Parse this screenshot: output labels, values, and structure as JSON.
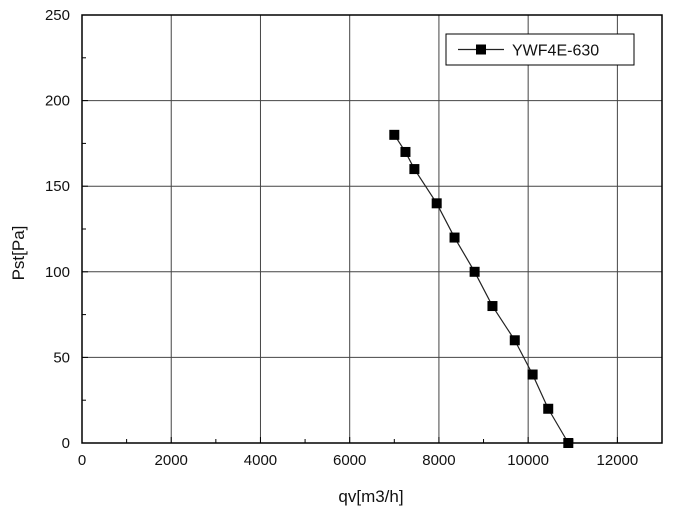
{
  "chart_data": {
    "type": "line",
    "title": "",
    "xlabel": "qv[m3/h]",
    "ylabel": "Pst[Pa]",
    "xlim": [
      0,
      13000
    ],
    "ylim": [
      0,
      250
    ],
    "xticks": [
      0,
      2000,
      4000,
      6000,
      8000,
      10000,
      12000
    ],
    "yticks": [
      0,
      50,
      100,
      150,
      200,
      250
    ],
    "x_tick_labels": [
      "0",
      "2000",
      "4000",
      "6000",
      "8000",
      "10000",
      "12000"
    ],
    "y_tick_labels": [
      "0",
      "50",
      "100",
      "150",
      "200",
      "250"
    ],
    "grid": true,
    "legend_position": "top-right",
    "series": [
      {
        "name": "YWF4E-630",
        "marker": "square",
        "color": "#000000",
        "x": [
          7000,
          7250,
          7450,
          7950,
          8350,
          8800,
          9200,
          9700,
          10100,
          10450,
          10900
        ],
        "y": [
          180,
          170,
          160,
          140,
          120,
          100,
          80,
          60,
          40,
          20,
          0
        ]
      }
    ]
  }
}
